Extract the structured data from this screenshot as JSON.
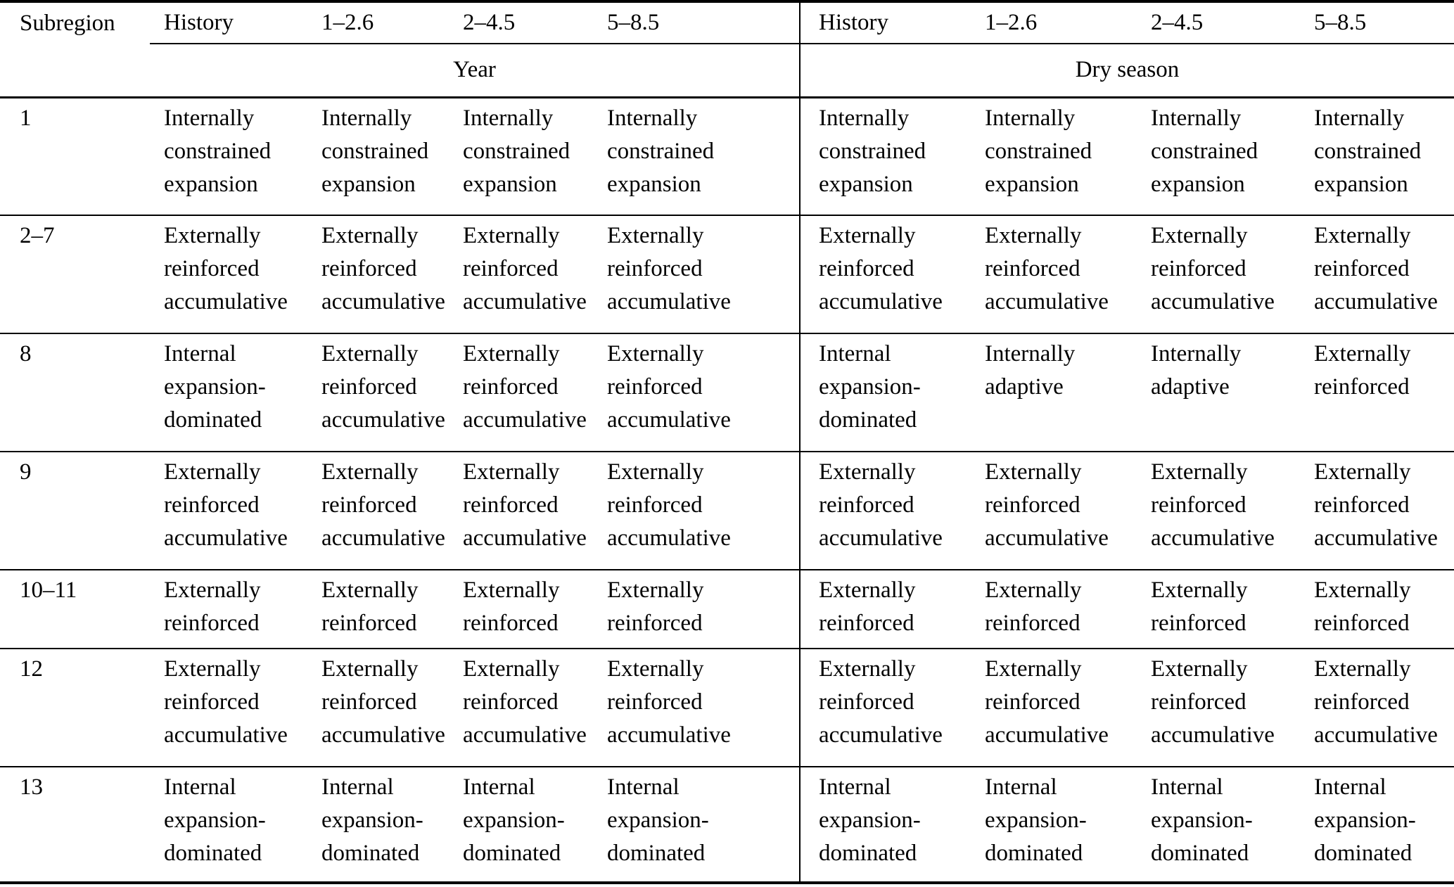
{
  "page": {
    "background_color": "#ffffff",
    "text_color": "#000000",
    "rule_color": "#000000"
  },
  "table": {
    "corner_header": "Subregion",
    "group_headers": [
      {
        "label": "Year"
      },
      {
        "label": "Dry season"
      }
    ],
    "scenario_headers": [
      "History",
      "1–2.6",
      "2–4.5",
      "5–8.5",
      "History",
      "1–2.6",
      "2–4.5",
      "5–8.5"
    ],
    "rows": [
      {
        "subregion": "1",
        "cells": [
          "Internally\nconstrained\nexpansion",
          "Internally\nconstrained\nexpansion",
          "Internally\nconstrained\nexpansion",
          "Internally\nconstrained\nexpansion",
          "Internally\nconstrained\nexpansion",
          "Internally\nconstrained\nexpansion",
          "Internally\nconstrained\nexpansion",
          "Internally\nconstrained\nexpansion"
        ]
      },
      {
        "subregion": "2–7",
        "cells": [
          "Externally\nreinforced\naccumulative",
          "Externally\nreinforced\naccumulative",
          "Externally\nreinforced\naccumulative",
          "Externally\nreinforced\naccumulative",
          "Externally\nreinforced\naccumulative",
          "Externally\nreinforced\naccumulative",
          "Externally\nreinforced\naccumulative",
          "Externally\nreinforced\naccumulative"
        ]
      },
      {
        "subregion": "8",
        "cells": [
          "Internal\nexpansion-\ndominated",
          "Externally\nreinforced\naccumulative",
          "Externally\nreinforced\naccumulative",
          "Externally\nreinforced\naccumulative",
          "Internal\nexpansion-\ndominated",
          "Internally\nadaptive",
          "Internally\nadaptive",
          "Externally\nreinforced"
        ]
      },
      {
        "subregion": "9",
        "cells": [
          "Externally\nreinforced\naccumulative",
          "Externally\nreinforced\naccumulative",
          "Externally\nreinforced\naccumulative",
          "Externally\nreinforced\naccumulative",
          "Externally\nreinforced\naccumulative",
          "Externally\nreinforced\naccumulative",
          "Externally\nreinforced\naccumulative",
          "Externally\nreinforced\naccumulative"
        ]
      },
      {
        "subregion": "10–11",
        "cells": [
          "Externally\nreinforced",
          "Externally\nreinforced",
          "Externally\nreinforced",
          "Externally\nreinforced",
          "Externally\nreinforced",
          "Externally\nreinforced",
          "Externally\nreinforced",
          "Externally\nreinforced"
        ]
      },
      {
        "subregion": "12",
        "cells": [
          "Externally\nreinforced\naccumulative",
          "Externally\nreinforced\naccumulative",
          "Externally\nreinforced\naccumulative",
          "Externally\nreinforced\naccumulative",
          "Externally\nreinforced\naccumulative",
          "Externally\nreinforced\naccumulative",
          "Externally\nreinforced\naccumulative",
          "Externally\nreinforced\naccumulative"
        ]
      },
      {
        "subregion": "13",
        "cells": [
          "Internal\nexpansion-\ndominated",
          "Internal\nexpansion-\ndominated",
          "Internal\nexpansion-\ndominated",
          "Internal\nexpansion-\ndominated",
          "Internal\nexpansion-\ndominated",
          "Internal\nexpansion-\ndominated",
          "Internal\nexpansion-\ndominated",
          "Internal\nexpansion-\ndominated"
        ]
      }
    ]
  }
}
